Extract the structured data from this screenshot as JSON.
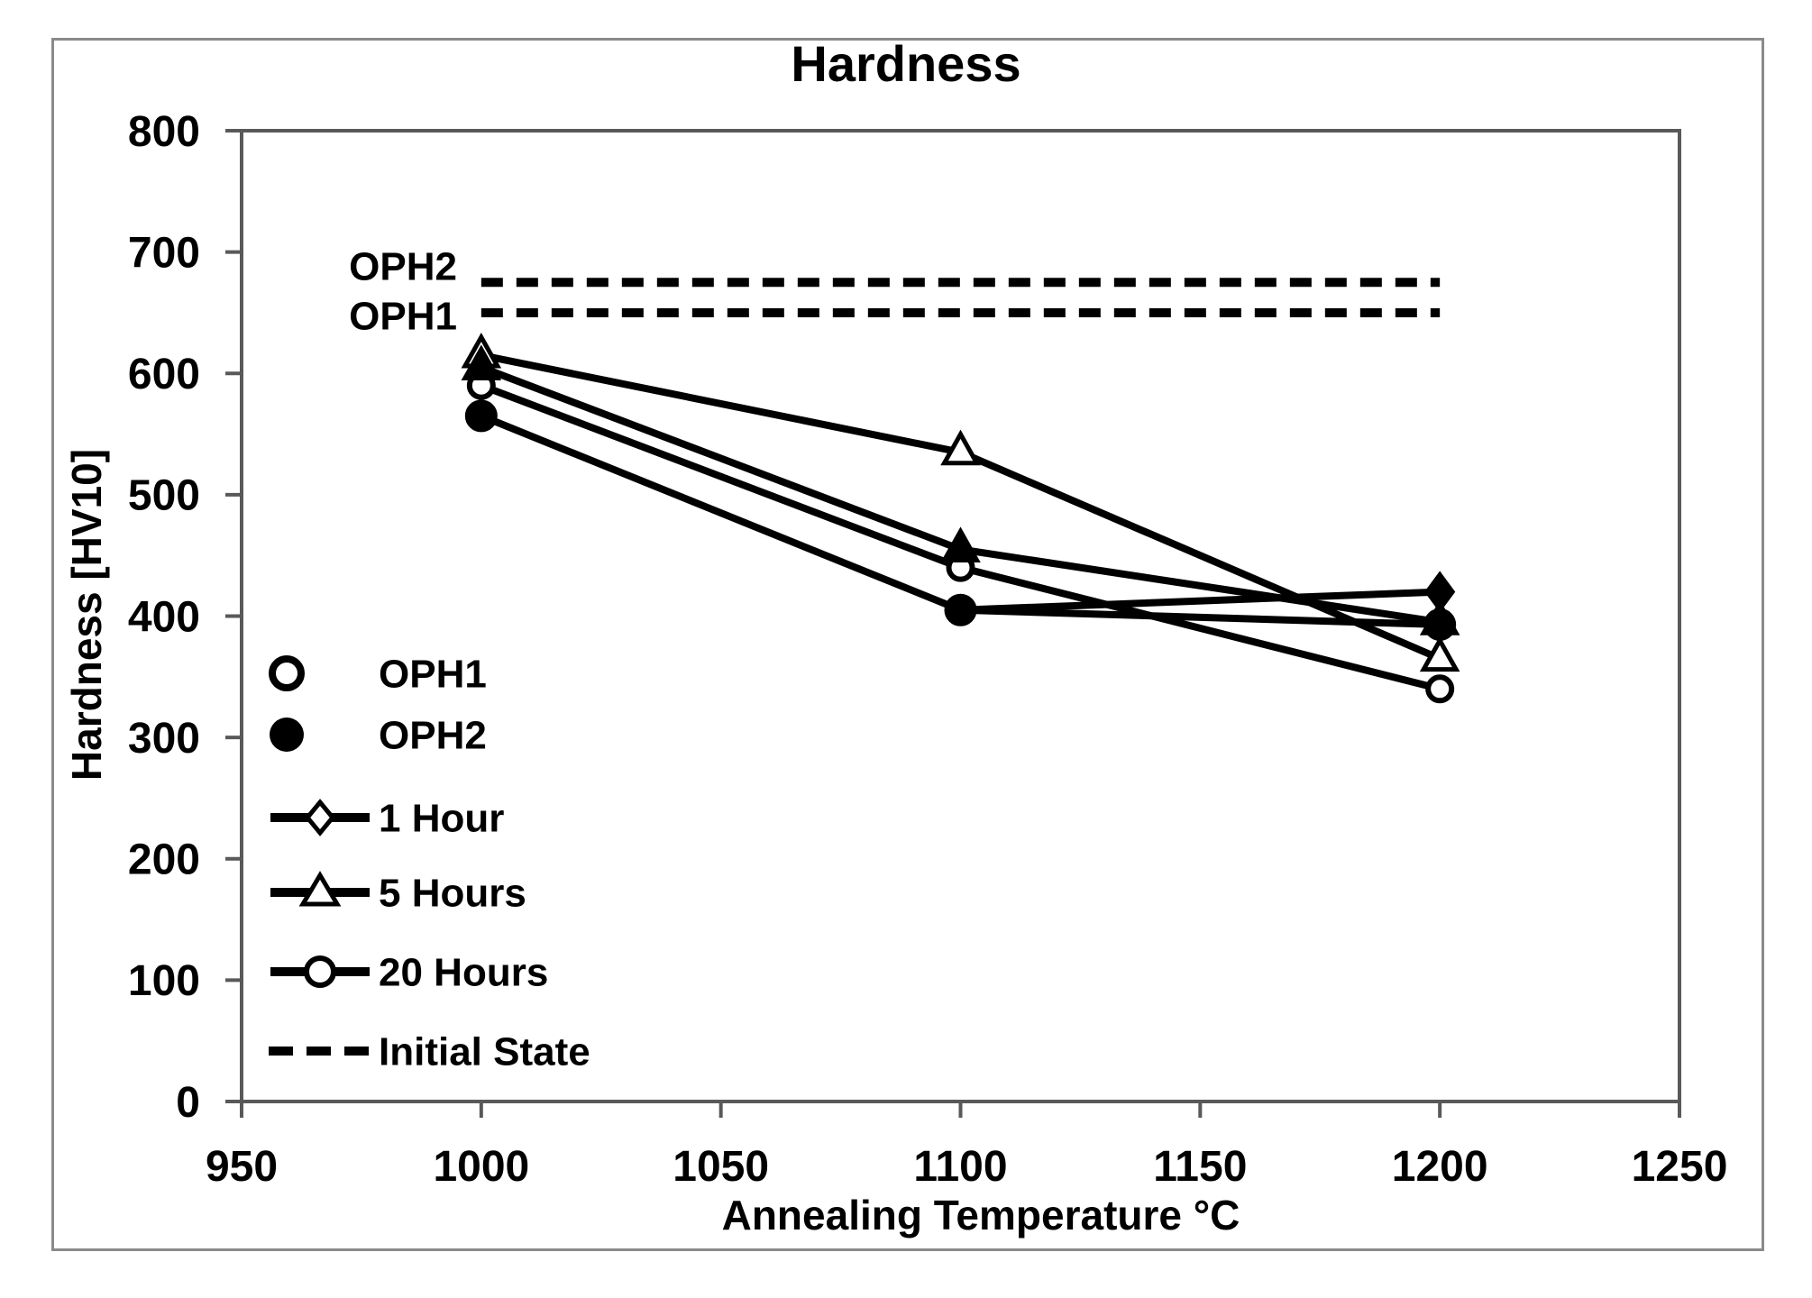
{
  "figure": {
    "title": "Hardness",
    "y_axis_title": "Hardness [HV10]",
    "x_axis_title": "Annealing Temperature °C"
  },
  "chart_data": {
    "type": "line",
    "title": "Hardness",
    "xlabel": "Annealing Temperature °C",
    "ylabel": "Hardness [HV10]",
    "xlim": [
      950,
      1250
    ],
    "ylim": [
      0,
      800
    ],
    "x_ticks": [
      950,
      1000,
      1050,
      1100,
      1150,
      1200,
      1250
    ],
    "y_ticks": [
      0,
      100,
      200,
      300,
      400,
      500,
      600,
      700,
      800
    ],
    "grid": false,
    "x": [
      1000,
      1100,
      1200
    ],
    "series": [
      {
        "name": "OPH1 20 Hours",
        "marker": "circle",
        "variant": "open",
        "values": [
          590,
          440,
          340
        ],
        "marker_visible": [
          true,
          true,
          true
        ]
      },
      {
        "name": "OPH2 20 Hours",
        "marker": "circle",
        "variant": "filled",
        "values": [
          565,
          405,
          393
        ],
        "marker_visible": [
          true,
          true,
          true
        ]
      },
      {
        "name": "OPH1 5 Hours",
        "marker": "triangle",
        "variant": "open",
        "values": [
          615,
          535,
          365
        ],
        "marker_visible": [
          true,
          true,
          true
        ]
      },
      {
        "name": "OPH2 5 Hours",
        "marker": "triangle",
        "variant": "filled",
        "values": [
          605,
          455,
          395
        ],
        "marker_visible": [
          true,
          true,
          true
        ]
      },
      {
        "name": "OPH2 1 Hour",
        "marker": "diamond",
        "variant": "filled",
        "values": [
          null,
          405,
          420
        ],
        "marker_visible": [
          false,
          false,
          true
        ]
      }
    ],
    "reference_lines": [
      {
        "label": "OPH2",
        "value": 675,
        "x_start": 1000,
        "x_end": 1200,
        "style": "dashed"
      },
      {
        "label": "OPH1",
        "value": 650,
        "x_start": 1000,
        "x_end": 1200,
        "style": "dashed"
      }
    ],
    "legend_position": "inside-left",
    "legend": [
      {
        "label": "OPH1",
        "symbol": "circle-open"
      },
      {
        "label": "OPH2",
        "symbol": "circle-filled"
      },
      {
        "label": "1 Hour",
        "symbol": "line-diamond-open"
      },
      {
        "label": "5 Hours",
        "symbol": "line-triangle-open"
      },
      {
        "label": "20 Hours",
        "symbol": "line-circle-open"
      },
      {
        "label": "Initial State",
        "symbol": "line-dashed"
      }
    ]
  },
  "colors": {
    "ink": "#000000",
    "frame": "#595959",
    "outer_border": "#8a8a8a",
    "background": "#ffffff"
  }
}
